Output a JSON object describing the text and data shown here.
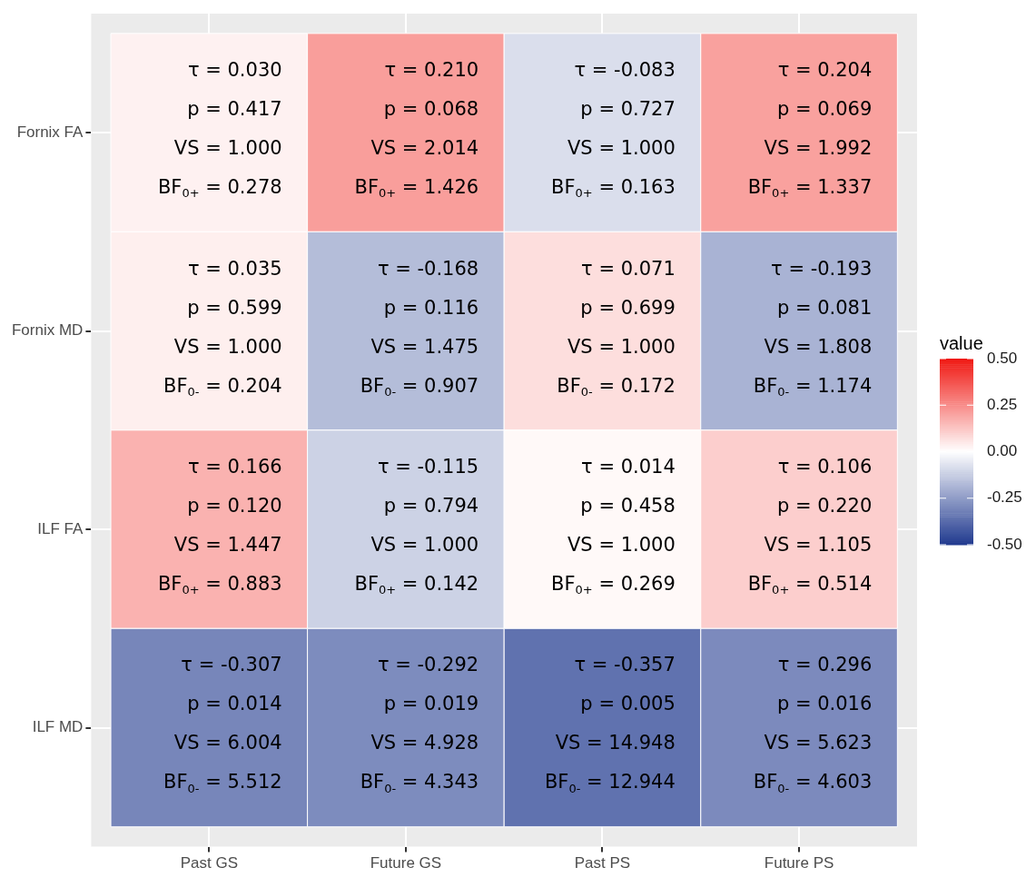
{
  "chart_data": {
    "type": "heatmap",
    "legend_title": "value",
    "grid": true,
    "categories": [
      "Past GS",
      "Future GS",
      "Past PS",
      "Future PS"
    ],
    "y_categories": [
      "Fornix FA",
      "Fornix MD",
      "ILF FA",
      "ILF MD"
    ],
    "cells": [
      [
        0.03,
        0.21,
        -0.083,
        0.204
      ],
      [
        0.035,
        -0.168,
        0.071,
        -0.193
      ],
      [
        0.166,
        -0.115,
        0.014,
        0.106
      ],
      [
        -0.307,
        -0.292,
        -0.357,
        -0.296
      ]
    ],
    "cell_labels": [
      [
        "τ = 0.030\np = 0.417\nVS = 1.000\nBF$_{0+}$ = 0.278",
        "τ = 0.210\np = 0.068\nVS = 2.014\nBF$_{0+}$ = 1.426",
        "τ = -0.083\np = 0.727\nVS = 1.000\nBF$_{0+}$ = 0.163",
        "τ = 0.204\np = 0.069\nVS = 1.992\nBF$_{0+}$ = 1.337"
      ],
      [
        "τ = 0.035\np = 0.599\nVS = 1.000\nBF$_{0-}$ = 0.204",
        "τ = -0.168\np = 0.116\nVS = 1.475\nBF$_{0-}$ = 0.907",
        "τ = 0.071\np = 0.699\nVS = 1.000\nBF$_{0-}$ = 0.172",
        "τ = -0.193\np = 0.081\nVS = 1.808\nBF$_{0-}$ = 1.174"
      ],
      [
        "τ = 0.166\np = 0.120\nVS = 1.447\nBF$_{0+}$ = 0.883",
        "τ = -0.115\np = 0.794\nVS = 1.000\nBF$_{0+}$ = 0.142",
        "τ = 0.014\np = 0.458\nVS = 1.000\nBF$_{0+}$ = 0.269",
        "τ = 0.106\np = 0.220\nVS = 1.105\nBF$_{0+}$ = 0.514"
      ],
      [
        "τ = -0.307\np = 0.014\nVS = 6.004\nBF$_{0-}$ = 5.512",
        "τ = -0.292\np = 0.019\nVS = 4.928\nBF$_{0-}$ = 4.343",
        "τ = -0.357\np = 0.005\nVS = 14.948\nBF$_{0-}$ = 12.944",
        "τ = 0.296\np = 0.016\nVS = 5.623\nBF$_{0-}$ = 4.603"
      ]
    ],
    "clim": [
      -0.5,
      0.5
    ],
    "cticks": [
      {
        "value": 0.5,
        "label": "0.50"
      },
      {
        "value": 0.25,
        "label": "0.25"
      },
      {
        "value": 0,
        "label": "0.00"
      },
      {
        "value": -0.25,
        "label": "-0.25"
      },
      {
        "value": -0.5,
        "label": "-0.50"
      }
    ]
  }
}
